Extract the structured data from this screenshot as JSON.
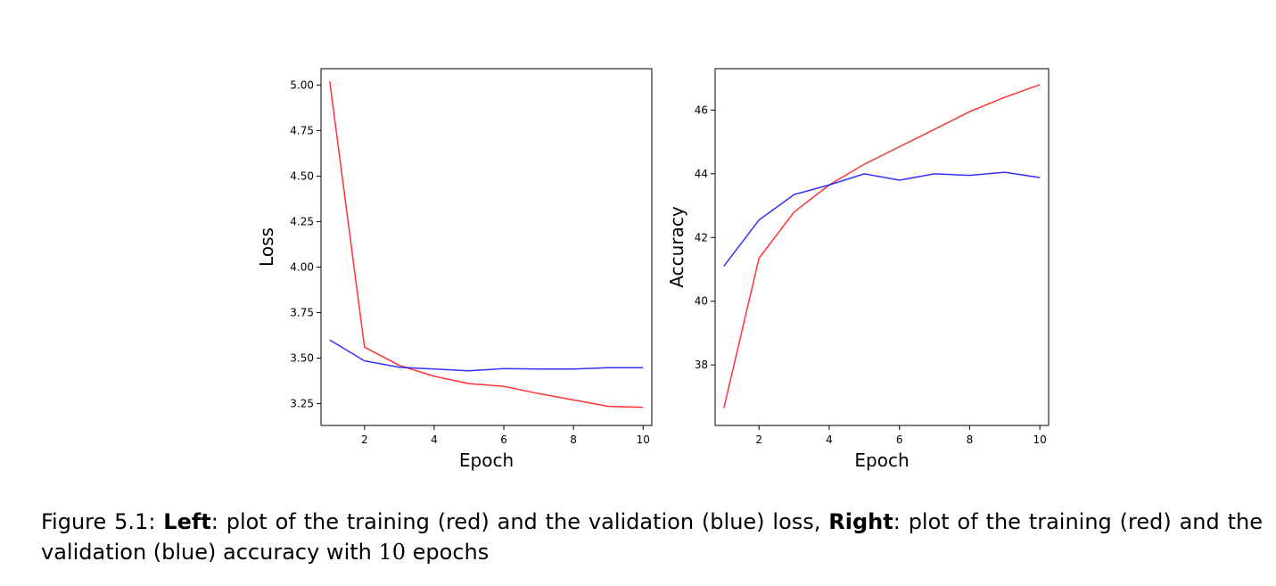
{
  "chart_data": [
    {
      "type": "line",
      "title": "",
      "xlabel": "Epoch",
      "ylabel": "Loss",
      "xlim": [
        0.75,
        10.25
      ],
      "ylim": [
        3.13,
        5.09
      ],
      "xticks": [
        2,
        4,
        6,
        8,
        10
      ],
      "yticks": [
        3.25,
        3.5,
        3.75,
        4.0,
        4.25,
        4.5,
        4.75,
        5.0
      ],
      "ytick_labels": [
        "3.25",
        "3.50",
        "3.75",
        "4.00",
        "4.25",
        "4.50",
        "4.75",
        "5.00"
      ],
      "grid": false,
      "x": [
        1,
        2,
        3,
        4,
        5,
        6,
        7,
        8,
        9,
        10
      ],
      "series": [
        {
          "color": "#ff0000",
          "values": [
            5.02,
            3.56,
            3.46,
            3.4,
            3.36,
            3.345,
            3.305,
            3.27,
            3.235,
            3.23
          ]
        },
        {
          "color": "#0000ff",
          "values": [
            3.6,
            3.485,
            3.45,
            3.44,
            3.43,
            3.442,
            3.44,
            3.44,
            3.447,
            3.447
          ]
        }
      ]
    },
    {
      "type": "line",
      "title": "",
      "xlabel": "Epoch",
      "ylabel": "Accuracy",
      "xlim": [
        0.75,
        10.25
      ],
      "ylim": [
        36.1,
        47.3
      ],
      "xticks": [
        2,
        4,
        6,
        8,
        10
      ],
      "yticks": [
        38,
        40,
        42,
        44,
        46
      ],
      "ytick_labels": [
        "38",
        "40",
        "42",
        "44",
        "46"
      ],
      "grid": false,
      "x": [
        1,
        2,
        3,
        4,
        5,
        6,
        7,
        8,
        9,
        10
      ],
      "series": [
        {
          "color": "#ff0000",
          "values": [
            36.65,
            41.35,
            42.8,
            43.65,
            44.3,
            44.85,
            45.4,
            45.95,
            46.4,
            46.8
          ]
        },
        {
          "color": "#0000ff",
          "values": [
            41.1,
            42.55,
            43.35,
            43.65,
            44.0,
            43.8,
            44.0,
            43.95,
            44.05,
            43.88
          ]
        }
      ]
    }
  ],
  "caption": {
    "prefix": "Figure 5.1: ",
    "left_label": "Left",
    "left_text": ": plot of the training (red) and the validation (blue) loss, ",
    "right_label": "Right",
    "right_text": ": plot of the training (red) and the validation (blue) accuracy with ",
    "epochs_number": "10",
    "suffix": " epochs"
  }
}
